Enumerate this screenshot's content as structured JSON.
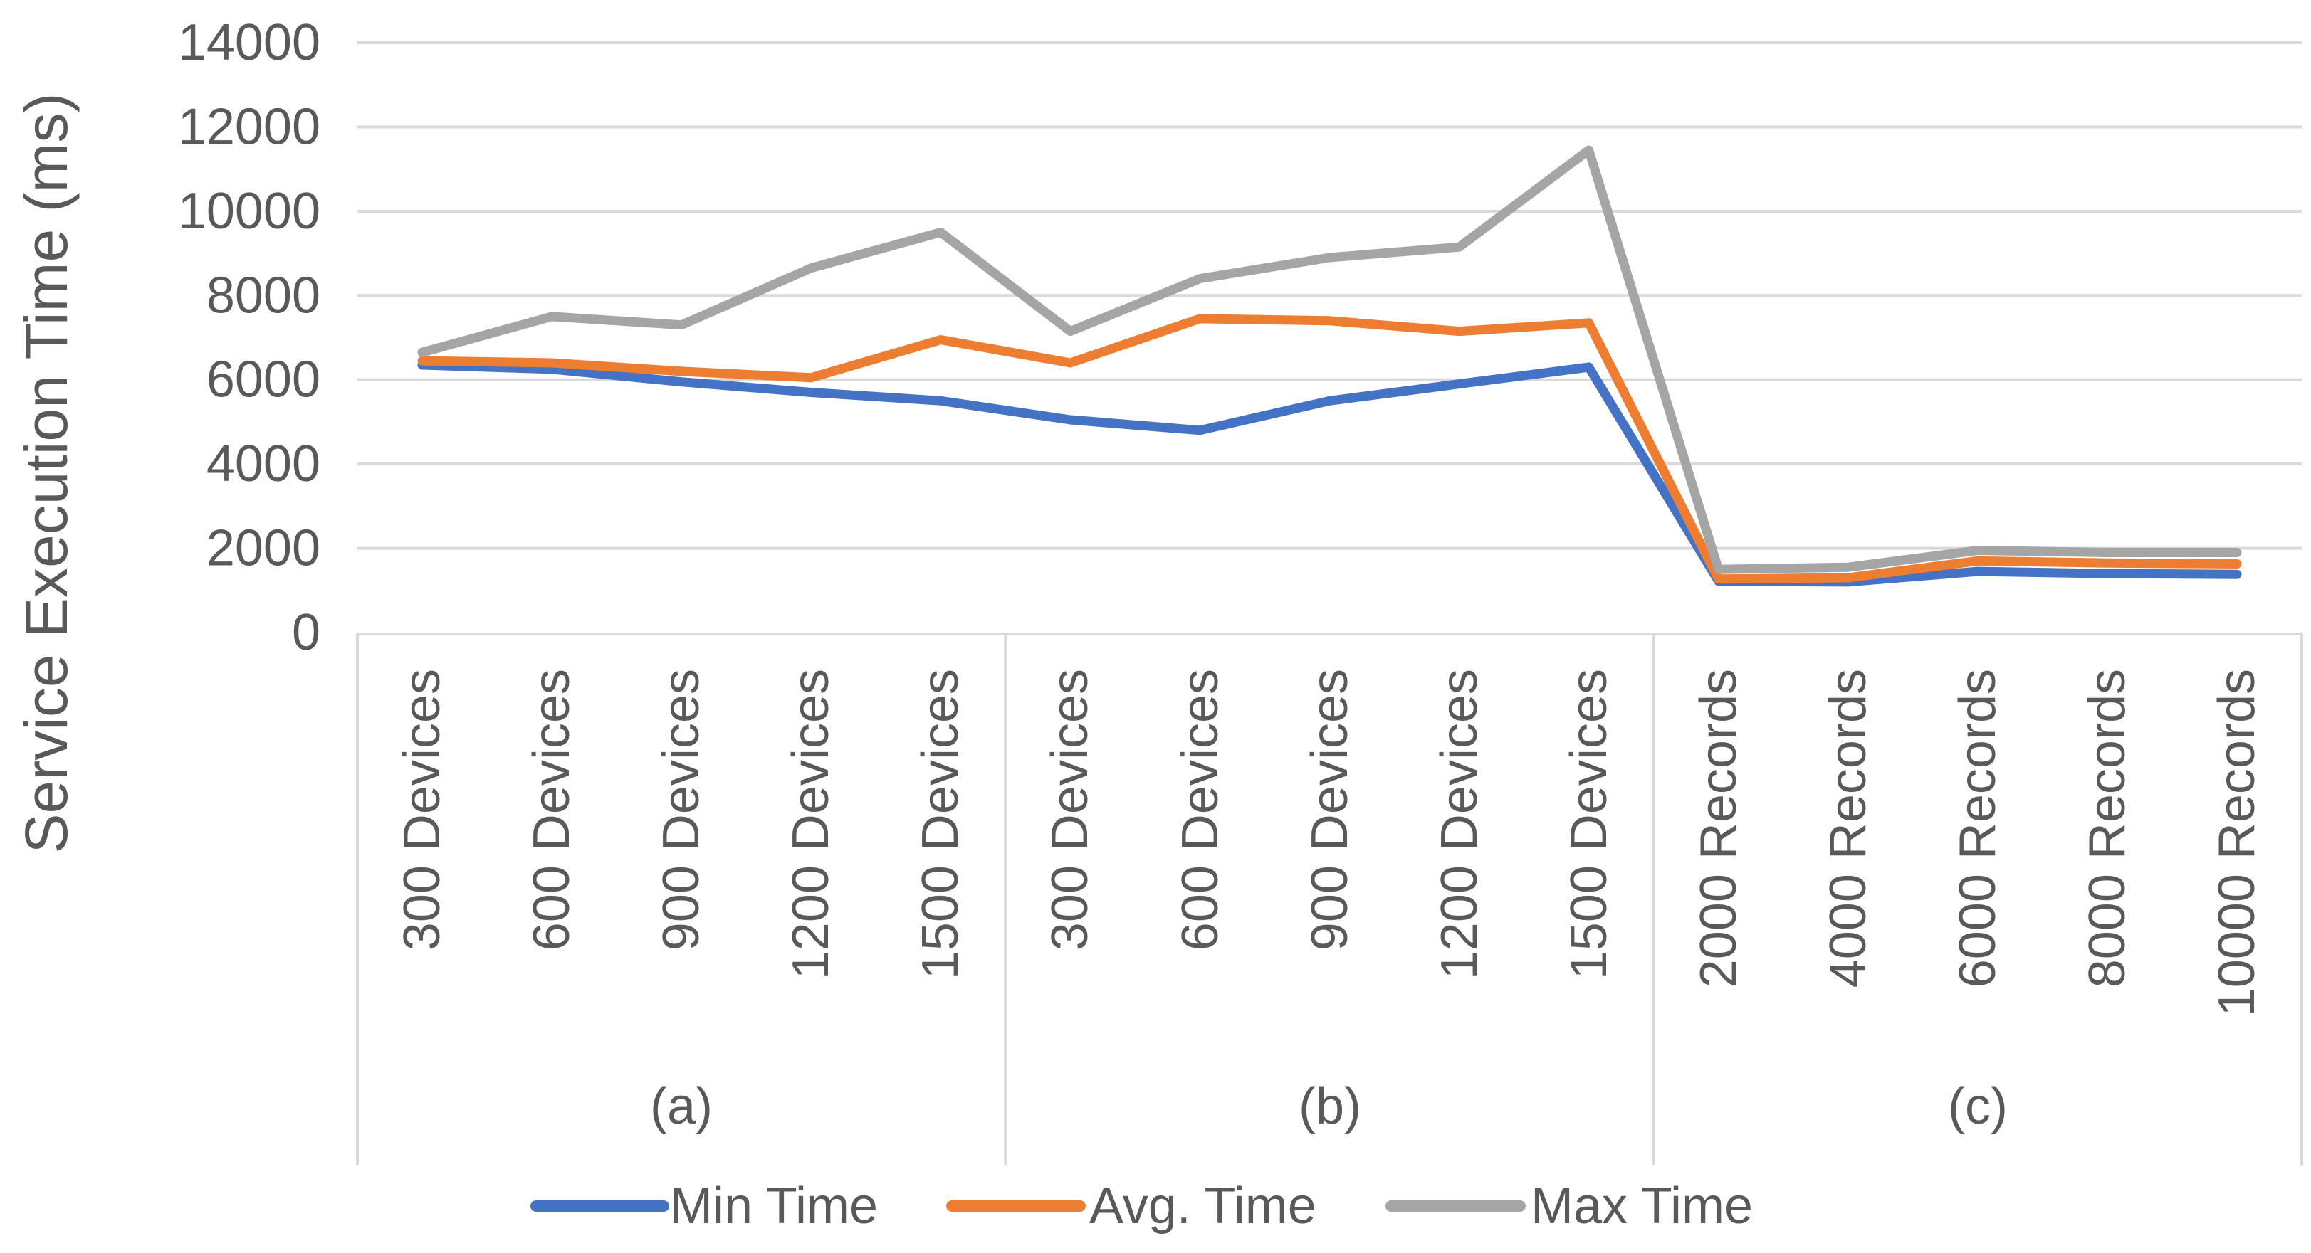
{
  "chart_data": {
    "type": "line",
    "title": "",
    "ylabel": "Service Execution Time (ms)",
    "xlabel": "",
    "ylim": [
      0,
      14000
    ],
    "ytick_step": 2000,
    "yticks": [
      "14000",
      "12000",
      "10000",
      "8000",
      "6000",
      "4000",
      "2000",
      "0"
    ],
    "grid": true,
    "legend_position": "bottom",
    "categories": [
      "300 Devices",
      "600 Devices",
      "900 Devices",
      "1200 Devices",
      "1500 Devices",
      "300 Devices",
      "600 Devices",
      "900 Devices",
      "1200 Devices",
      "1500 Devices",
      "2000 Records",
      "4000 Records",
      "6000 Records",
      "8000 Records",
      "10000 Records"
    ],
    "groups": [
      {
        "label": "(a)",
        "size": 5
      },
      {
        "label": "(b)",
        "size": 5
      },
      {
        "label": "(c)",
        "size": 5
      }
    ],
    "series": [
      {
        "name": "Min Time",
        "color": "#4472C4",
        "values": [
          6350,
          6250,
          5950,
          5700,
          5500,
          5050,
          4800,
          5500,
          5900,
          6300,
          1220,
          1200,
          1450,
          1400,
          1380
        ]
      },
      {
        "name": "Avg. Time",
        "color": "#ED7D31",
        "values": [
          6450,
          6400,
          6200,
          6050,
          6950,
          6400,
          7450,
          7400,
          7150,
          7350,
          1270,
          1300,
          1700,
          1650,
          1630
        ]
      },
      {
        "name": "Max Time",
        "color": "#A5A5A5",
        "values": [
          6650,
          7500,
          7300,
          8650,
          9500,
          7150,
          8400,
          8900,
          9150,
          11450,
          1500,
          1550,
          1950,
          1900,
          1900
        ]
      }
    ]
  },
  "colors": {
    "axis_text": "#595959",
    "gridline": "#D9D9D9",
    "axis_border": "#D9D9D9",
    "background": "#FFFFFF"
  }
}
